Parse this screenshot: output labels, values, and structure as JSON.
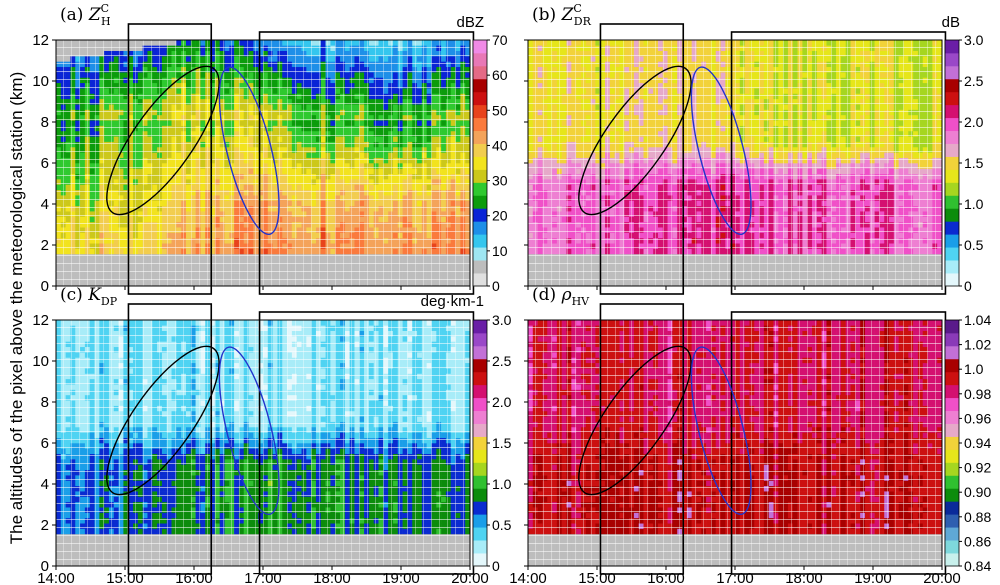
{
  "figure": {
    "ylabel": "The altitudes of the pixel above the meteorological station (km)"
  },
  "chart_data": [
    {
      "type": "heatmap",
      "panel_label": "(a)",
      "title_var": "Z",
      "title_sup": "C",
      "title_sub": "H",
      "unit": "dBZ",
      "xlim": [
        "14:00",
        "20:00"
      ],
      "x_ticks": [],
      "y_ticks": [
        "0",
        "2",
        "4",
        "6",
        "8",
        "10",
        "12"
      ],
      "ylim": [
        0,
        12
      ],
      "colorbar_ticks": [
        "0",
        "10",
        "20",
        "30",
        "40",
        "50",
        "60",
        "70"
      ],
      "colorbar_range": [
        0,
        70
      ],
      "colorbar_colors": [
        "#e0e0e0",
        "#bdbdbd",
        "#9ee6f2",
        "#34c6ee",
        "#1e8fe8",
        "#0a24d6",
        "#0c9c0c",
        "#2fc92f",
        "#ccc81a",
        "#f2e31e",
        "#f2cd4e",
        "#f4a35a",
        "#fa7a3d",
        "#e8431c",
        "#cc1010",
        "#a80000",
        "#e46a86",
        "#e878b6",
        "#f08ae6"
      ],
      "rain_layer_top_km": 1.5,
      "profile_by_time": [
        {
          "t": "14:00",
          "z_top_km": 11.0,
          "value_surface": 36,
          "value_mid": 26,
          "value_top": 14
        },
        {
          "t": "15:00",
          "z_top_km": 11.5,
          "value_surface": 38,
          "value_mid": 32,
          "value_top": 18
        },
        {
          "t": "16:00",
          "z_top_km": 12.0,
          "value_surface": 44,
          "value_mid": 36,
          "value_top": 24
        },
        {
          "t": "17:00",
          "z_top_km": 12.0,
          "value_surface": 46,
          "value_mid": 34,
          "value_top": 16
        },
        {
          "t": "18:00",
          "z_top_km": 12.0,
          "value_surface": 45,
          "value_mid": 30,
          "value_top": 14
        },
        {
          "t": "19:00",
          "z_top_km": 12.0,
          "value_surface": 45,
          "value_mid": 28,
          "value_top": 12
        },
        {
          "t": "20:00",
          "z_top_km": 12.0,
          "value_surface": 44,
          "value_mid": 30,
          "value_top": 14
        }
      ]
    },
    {
      "type": "heatmap",
      "panel_label": "(b)",
      "title_var": "Z",
      "title_sup": "C",
      "title_sub": "DR",
      "unit": "dB",
      "xlim": [
        "14:00",
        "20:00"
      ],
      "x_ticks": [],
      "y_ticks": [],
      "ylim": [
        0,
        12
      ],
      "colorbar_ticks": [
        "0",
        "0.5",
        "1.0",
        "1.5",
        "2.0",
        "2.5",
        "3.0"
      ],
      "colorbar_range": [
        0,
        3
      ],
      "colorbar_colors": [
        "#e4f7fb",
        "#a8ecf8",
        "#4fd3f2",
        "#1a9ee8",
        "#0a2bd0",
        "#0c8c0c",
        "#30c030",
        "#a6d620",
        "#e6e61a",
        "#f2d23a",
        "#e6a9c9",
        "#ee7fd2",
        "#f050c8",
        "#d41070",
        "#cc1010",
        "#a80000",
        "#c270d6",
        "#9a48c8",
        "#6a1ea6"
      ],
      "rain_layer_top_km": 1.5,
      "profile_by_time": [
        {
          "t": "14:00",
          "value_low": 1.85,
          "value_high": 1.45
        },
        {
          "t": "15:00",
          "value_low": 1.95,
          "value_high": 1.45
        },
        {
          "t": "16:00",
          "value_low": 2.0,
          "value_high": 1.5
        },
        {
          "t": "17:00",
          "value_low": 2.05,
          "value_high": 1.4
        },
        {
          "t": "18:00",
          "value_low": 2.0,
          "value_high": 1.35
        },
        {
          "t": "19:00",
          "value_low": 1.95,
          "value_high": 1.3
        },
        {
          "t": "20:00",
          "value_low": 1.9,
          "value_high": 1.3
        }
      ]
    },
    {
      "type": "heatmap",
      "panel_label": "(c)",
      "title_var": "K",
      "title_sub": "DP",
      "unit": "deg·km-1",
      "xlim": [
        "14:00",
        "20:00"
      ],
      "x_ticks": [
        "14:00",
        "15:00",
        "16:00",
        "17:00",
        "18:00",
        "19:00",
        "20:00"
      ],
      "y_ticks": [
        "0",
        "2",
        "4",
        "6",
        "8",
        "10",
        "12"
      ],
      "ylim": [
        0,
        12
      ],
      "colorbar_ticks": [
        "0",
        "0.5",
        "1.0",
        "1.5",
        "2.0",
        "2.5",
        "3.0"
      ],
      "colorbar_range": [
        0,
        3
      ],
      "colorbar_colors": [
        "#e4f7fb",
        "#a8ecf8",
        "#4fd3f2",
        "#1a9ee8",
        "#0a2bd0",
        "#0c8c0c",
        "#30c030",
        "#a6d620",
        "#e6e61a",
        "#f2d23a",
        "#e6a9c9",
        "#ee7fd2",
        "#f050c8",
        "#d41070",
        "#cc1010",
        "#a80000",
        "#c270d6",
        "#9a48c8",
        "#6a1ea6"
      ],
      "rain_layer_top_km": 1.5,
      "profile_by_time": [
        {
          "t": "14:00",
          "value_low": 0.6,
          "value_high": 0.3
        },
        {
          "t": "15:00",
          "value_low": 0.7,
          "value_high": 0.3
        },
        {
          "t": "16:00",
          "value_low": 0.8,
          "value_high": 0.3
        },
        {
          "t": "17:00",
          "value_low": 0.95,
          "value_high": 0.3
        },
        {
          "t": "18:00",
          "value_low": 0.85,
          "value_high": 0.3
        },
        {
          "t": "19:00",
          "value_low": 0.8,
          "value_high": 0.3
        },
        {
          "t": "20:00",
          "value_low": 0.8,
          "value_high": 0.3
        }
      ]
    },
    {
      "type": "heatmap",
      "panel_label": "(d)",
      "title_var": "ρ",
      "title_sub": "HV",
      "unit": "",
      "xlim": [
        "14:00",
        "20:00"
      ],
      "x_ticks": [
        "14:00",
        "15:00",
        "16:00",
        "17:00",
        "18:00",
        "19:00",
        "20:00"
      ],
      "y_ticks": [],
      "ylim": [
        0,
        12
      ],
      "colorbar_ticks": [
        "0.84",
        "0.86",
        "0.88",
        "0.90",
        "0.92",
        "0.94",
        "0.96",
        "0.98",
        "1.0",
        "1.02",
        "1.04"
      ],
      "colorbar_range": [
        0.84,
        1.04
      ],
      "colorbar_colors": [
        "#c8f0ec",
        "#7ed8dc",
        "#5fa8d6",
        "#2e5fb0",
        "#0a2a9a",
        "#0c8c0c",
        "#30c030",
        "#a6d620",
        "#e6e61a",
        "#f2d23a",
        "#e6a9c9",
        "#ee7fd2",
        "#f050c8",
        "#d41070",
        "#cc1010",
        "#a80000",
        "#c270d6",
        "#8a3ab8",
        "#5a1a8a"
      ],
      "rain_layer_top_km": 1.5,
      "profile_by_time": [
        {
          "t": "14:00",
          "value_low": 0.995,
          "value_high": 0.985
        },
        {
          "t": "15:00",
          "value_low": 0.998,
          "value_high": 0.988
        },
        {
          "t": "16:00",
          "value_low": 0.998,
          "value_high": 0.985
        },
        {
          "t": "17:00",
          "value_low": 0.998,
          "value_high": 0.987
        },
        {
          "t": "18:00",
          "value_low": 0.998,
          "value_high": 0.988
        },
        {
          "t": "19:00",
          "value_low": 0.998,
          "value_high": 0.99
        },
        {
          "t": "20:00",
          "value_low": 0.998,
          "value_high": 0.99
        }
      ]
    }
  ]
}
